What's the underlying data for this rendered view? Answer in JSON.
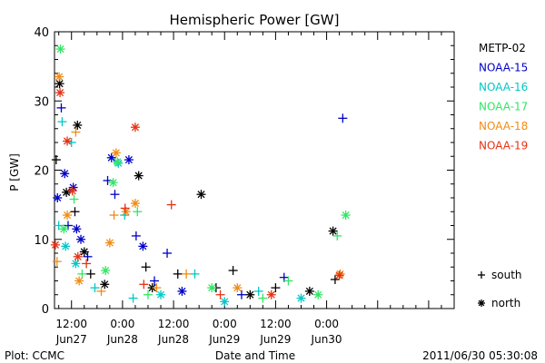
{
  "chart_data": {
    "type": "scatter",
    "title": "Hemispheric Power [GW]",
    "ylabel": "P [GW]",
    "xlabel": "Date and Time",
    "ylim": [
      0,
      40
    ],
    "yticks": [
      0,
      10,
      20,
      30,
      40
    ],
    "xlim_hours": [
      -16,
      78
    ],
    "xticks": [
      {
        "hour": -12,
        "time": "12:00",
        "date": "Jun27"
      },
      {
        "hour": 0,
        "time": "0:00",
        "date": "Jun28"
      },
      {
        "hour": 12,
        "time": "12:00",
        "date": "Jun28"
      },
      {
        "hour": 24,
        "time": "0:00",
        "date": "Jun29"
      },
      {
        "hour": 36,
        "time": "12:00",
        "date": "Jun29"
      },
      {
        "hour": 48,
        "time": "0:00",
        "date": "Jun30"
      }
    ],
    "footer_left": "Plot: CCMC",
    "footer_right": "2011/06/30 05:30:08",
    "marker_legend": [
      {
        "symbol": "+",
        "label": "south"
      },
      {
        "symbol": "*",
        "label": "north"
      }
    ],
    "series": [
      {
        "name": "METP-02",
        "color": "#000000",
        "points": [
          {
            "x": -15.6,
            "y": 21.5,
            "m": "+"
          },
          {
            "x": -14.8,
            "y": 32.5,
            "m": "*"
          },
          {
            "x": -13.2,
            "y": 16.8,
            "m": "*"
          },
          {
            "x": -11.2,
            "y": 14.0,
            "m": "+"
          },
          {
            "x": -10.6,
            "y": 26.5,
            "m": "*"
          },
          {
            "x": -9.0,
            "y": 8.2,
            "m": "*"
          },
          {
            "x": -7.5,
            "y": 5.0,
            "m": "+"
          },
          {
            "x": -4.2,
            "y": 3.5,
            "m": "*"
          },
          {
            "x": 3.8,
            "y": 19.2,
            "m": "*"
          },
          {
            "x": 5.5,
            "y": 6.0,
            "m": "+"
          },
          {
            "x": 7.0,
            "y": 3.0,
            "m": "*"
          },
          {
            "x": 13.0,
            "y": 5.0,
            "m": "+"
          },
          {
            "x": 18.5,
            "y": 16.5,
            "m": "*"
          },
          {
            "x": 22.0,
            "y": 3.0,
            "m": "+"
          },
          {
            "x": 26.0,
            "y": 5.5,
            "m": "+"
          },
          {
            "x": 30.0,
            "y": 2.0,
            "m": "*"
          },
          {
            "x": 36.0,
            "y": 3.0,
            "m": "+"
          },
          {
            "x": 44.0,
            "y": 2.5,
            "m": "*"
          },
          {
            "x": 49.5,
            "y": 11.2,
            "m": "*"
          },
          {
            "x": 50.0,
            "y": 4.2,
            "m": "+"
          }
        ]
      },
      {
        "name": "NOAA-15",
        "color": "#0000c8",
        "points": [
          {
            "x": -15.3,
            "y": 16.0,
            "m": "*"
          },
          {
            "x": -14.4,
            "y": 29.0,
            "m": "+"
          },
          {
            "x": -13.6,
            "y": 19.5,
            "m": "*"
          },
          {
            "x": -12.8,
            "y": 12.0,
            "m": "+"
          },
          {
            "x": -11.6,
            "y": 17.5,
            "m": "*"
          },
          {
            "x": -10.8,
            "y": 11.5,
            "m": "*"
          },
          {
            "x": -9.8,
            "y": 10.0,
            "m": "*"
          },
          {
            "x": -8.2,
            "y": 7.5,
            "m": "+"
          },
          {
            "x": -3.5,
            "y": 18.5,
            "m": "+"
          },
          {
            "x": -2.6,
            "y": 21.8,
            "m": "*"
          },
          {
            "x": -1.8,
            "y": 16.5,
            "m": "+"
          },
          {
            "x": 1.5,
            "y": 21.5,
            "m": "*"
          },
          {
            "x": 3.2,
            "y": 10.5,
            "m": "+"
          },
          {
            "x": 4.8,
            "y": 9.0,
            "m": "*"
          },
          {
            "x": 7.5,
            "y": 4.0,
            "m": "+"
          },
          {
            "x": 10.5,
            "y": 8.0,
            "m": "+"
          },
          {
            "x": 14.0,
            "y": 2.5,
            "m": "*"
          },
          {
            "x": 28.0,
            "y": 2.0,
            "m": "+"
          },
          {
            "x": 38.0,
            "y": 4.5,
            "m": "+"
          },
          {
            "x": 51.8,
            "y": 27.5,
            "m": "+"
          }
        ]
      },
      {
        "name": "NOAA-16",
        "color": "#00c8c8",
        "points": [
          {
            "x": -15.0,
            "y": 12.0,
            "m": "+"
          },
          {
            "x": -14.2,
            "y": 27.0,
            "m": "+"
          },
          {
            "x": -13.4,
            "y": 9.0,
            "m": "*"
          },
          {
            "x": -12.0,
            "y": 24.0,
            "m": "+"
          },
          {
            "x": -11.0,
            "y": 6.5,
            "m": "*"
          },
          {
            "x": -6.5,
            "y": 3.0,
            "m": "+"
          },
          {
            "x": -1.0,
            "y": 21.0,
            "m": "*"
          },
          {
            "x": 0.5,
            "y": 13.5,
            "m": "+"
          },
          {
            "x": 2.5,
            "y": 1.5,
            "m": "+"
          },
          {
            "x": 9.0,
            "y": 2.0,
            "m": "*"
          },
          {
            "x": 17.0,
            "y": 5.0,
            "m": "+"
          },
          {
            "x": 24.0,
            "y": 1.0,
            "m": "*"
          },
          {
            "x": 32.0,
            "y": 2.5,
            "m": "+"
          },
          {
            "x": 42.0,
            "y": 1.5,
            "m": "*"
          }
        ]
      },
      {
        "name": "NOAA-17",
        "color": "#32e664",
        "points": [
          {
            "x": -14.6,
            "y": 37.5,
            "m": "*"
          },
          {
            "x": -13.8,
            "y": 11.5,
            "m": "*"
          },
          {
            "x": -11.4,
            "y": 15.8,
            "m": "+"
          },
          {
            "x": -9.5,
            "y": 5.0,
            "m": "+"
          },
          {
            "x": -4.0,
            "y": 5.5,
            "m": "*"
          },
          {
            "x": -2.2,
            "y": 18.2,
            "m": "*"
          },
          {
            "x": -1.2,
            "y": 21.2,
            "m": "*"
          },
          {
            "x": 3.5,
            "y": 14.0,
            "m": "+"
          },
          {
            "x": 6.0,
            "y": 2.0,
            "m": "+"
          },
          {
            "x": 21.0,
            "y": 3.0,
            "m": "*"
          },
          {
            "x": 33.0,
            "y": 1.5,
            "m": "+"
          },
          {
            "x": 39.0,
            "y": 4.0,
            "m": "+"
          },
          {
            "x": 46.0,
            "y": 2.0,
            "m": "*"
          },
          {
            "x": 52.5,
            "y": 13.5,
            "m": "*"
          },
          {
            "x": 50.5,
            "y": 10.5,
            "m": "+"
          }
        ]
      },
      {
        "name": "NOAA-18",
        "color": "#f08c14",
        "points": [
          {
            "x": -15.4,
            "y": 6.8,
            "m": "+"
          },
          {
            "x": -14.9,
            "y": 33.5,
            "m": "*"
          },
          {
            "x": -13.0,
            "y": 13.5,
            "m": "*"
          },
          {
            "x": -11.0,
            "y": 25.5,
            "m": "+"
          },
          {
            "x": -10.2,
            "y": 4.0,
            "m": "*"
          },
          {
            "x": -5.0,
            "y": 2.5,
            "m": "+"
          },
          {
            "x": -3.0,
            "y": 9.5,
            "m": "*"
          },
          {
            "x": -2.0,
            "y": 13.5,
            "m": "+"
          },
          {
            "x": -1.5,
            "y": 22.5,
            "m": "*"
          },
          {
            "x": 0.8,
            "y": 14.0,
            "m": "*"
          },
          {
            "x": 3.0,
            "y": 15.2,
            "m": "*"
          },
          {
            "x": 8.0,
            "y": 3.0,
            "m": "+"
          },
          {
            "x": 15.0,
            "y": 5.0,
            "m": "+"
          },
          {
            "x": 27.0,
            "y": 3.0,
            "m": "*"
          },
          {
            "x": 51.2,
            "y": 5.0,
            "m": "*"
          }
        ]
      },
      {
        "name": "NOAA-19",
        "color": "#e63214",
        "points": [
          {
            "x": -15.8,
            "y": 9.2,
            "m": "*"
          },
          {
            "x": -14.7,
            "y": 31.2,
            "m": "*"
          },
          {
            "x": -13.0,
            "y": 24.2,
            "m": "*"
          },
          {
            "x": -11.8,
            "y": 17.0,
            "m": "*"
          },
          {
            "x": -10.5,
            "y": 7.5,
            "m": "*"
          },
          {
            "x": -8.5,
            "y": 6.5,
            "m": "+"
          },
          {
            "x": 0.6,
            "y": 14.5,
            "m": "+"
          },
          {
            "x": 3.0,
            "y": 26.2,
            "m": "*"
          },
          {
            "x": 5.0,
            "y": 3.5,
            "m": "+"
          },
          {
            "x": 11.5,
            "y": 15.0,
            "m": "+"
          },
          {
            "x": 23.0,
            "y": 2.0,
            "m": "+"
          },
          {
            "x": 35.0,
            "y": 2.0,
            "m": "*"
          },
          {
            "x": 51.0,
            "y": 4.8,
            "m": "*"
          }
        ]
      }
    ]
  }
}
